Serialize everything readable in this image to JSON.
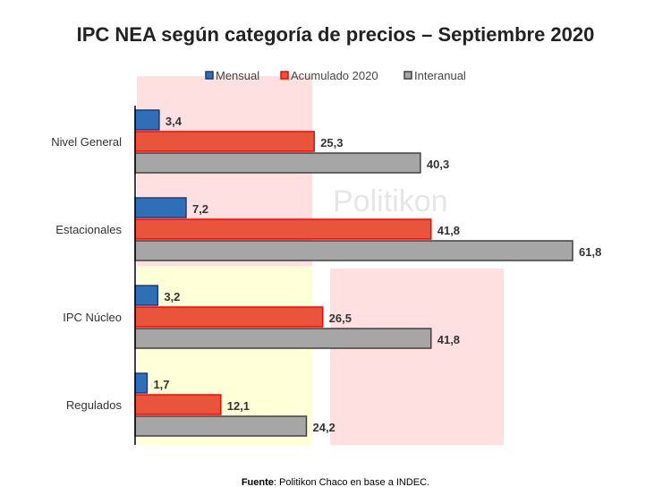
{
  "chart_data": {
    "type": "bar",
    "orientation": "horizontal",
    "title": "IPC NEA según categoría de precios – Septiembre 2020",
    "categories": [
      "Nivel General",
      "Estacionales",
      "IPC Núcleo",
      "Regulados"
    ],
    "series": [
      {
        "name": "Mensual",
        "values": [
          3.4,
          7.2,
          3.2,
          1.7
        ],
        "color": "#2e6fb7",
        "border": "#1a3d7a"
      },
      {
        "name": "Acumulado 2020",
        "values": [
          25.3,
          41.8,
          26.5,
          12.1
        ],
        "color": "#e8553a",
        "border": "#ff0000"
      },
      {
        "name": "Interanual",
        "values": [
          40.3,
          61.8,
          41.8,
          24.2
        ],
        "color": "#a6a6a6",
        "border": "#404040"
      }
    ],
    "data_labels": [
      [
        "3,4",
        "7,2",
        "3,2",
        "1,7"
      ],
      [
        "25,3",
        "41,8",
        "26,5",
        "12,1"
      ],
      [
        "40,3",
        "61,8",
        "41,8",
        "24,2"
      ]
    ],
    "xlim": [
      0,
      62
    ],
    "grid": false,
    "legend_placement": "top",
    "watermark": "Politikon"
  },
  "source": {
    "label": "Fuente",
    "text": ": Politikon Chaco  en base a INDEC."
  }
}
